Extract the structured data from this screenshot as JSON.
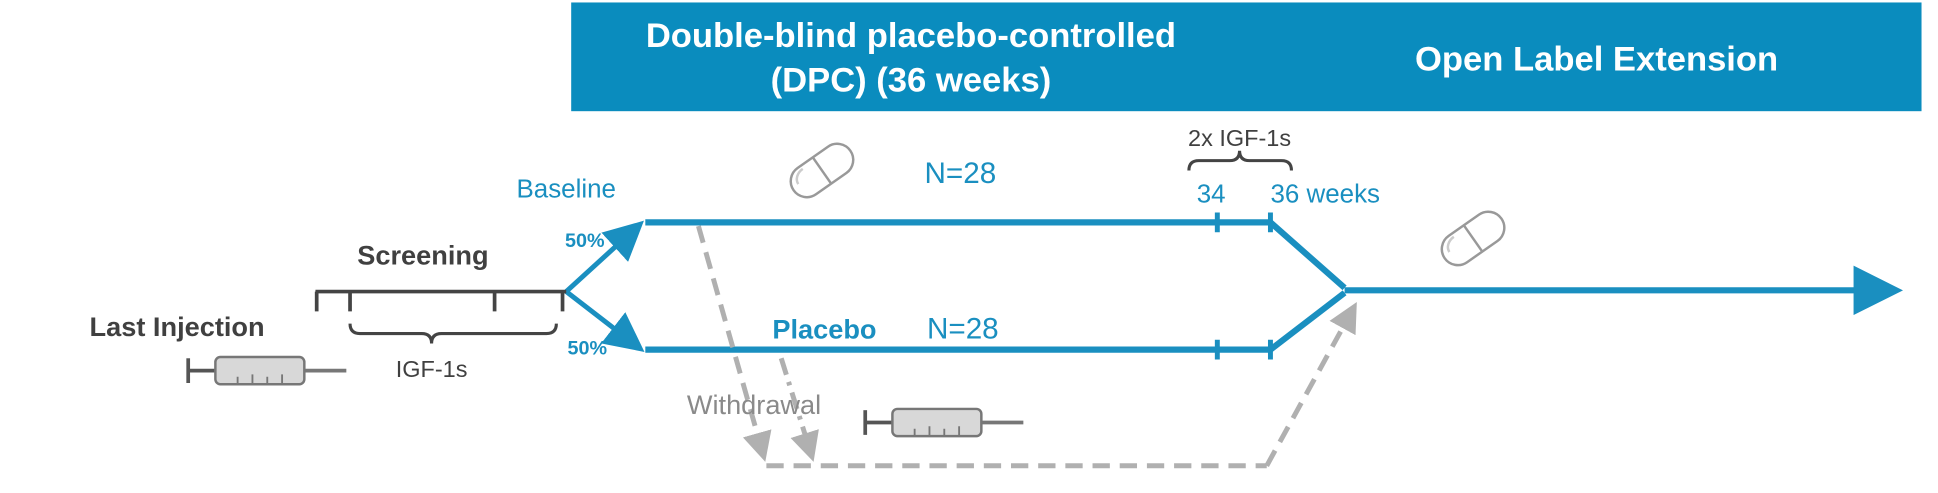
{
  "header": {
    "dpc_line1": "Double-blind placebo-controlled",
    "dpc_line2": "(DPC) (36 weeks)",
    "ole": "Open Label Extension"
  },
  "labels": {
    "baseline": "Baseline",
    "n_top": "N=28",
    "two_igf": "2x IGF-1s",
    "week34": "34",
    "week36": "36 weeks",
    "screening": "Screening",
    "pct_top": "50%",
    "pct_bottom": "50%",
    "last_injection": "Last Injection",
    "igf": "IGF-1s",
    "placebo": "Placebo",
    "n_bottom": "N=28",
    "withdrawal": "Withdrawal"
  }
}
